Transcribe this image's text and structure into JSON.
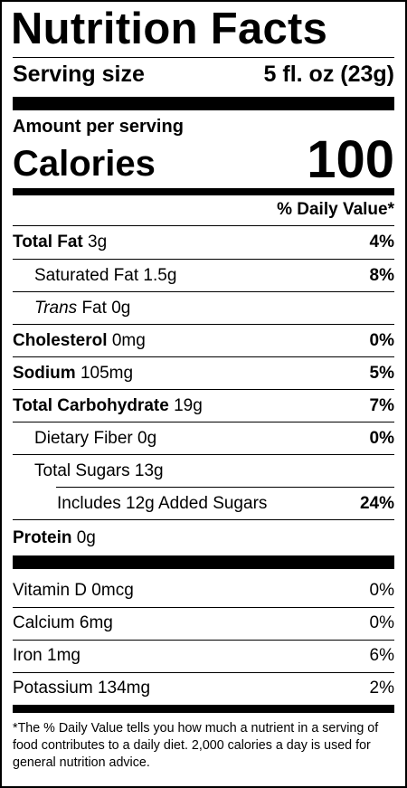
{
  "label": {
    "title": "Nutrition Facts",
    "serving_size": {
      "label": "Serving size",
      "value": "5 fl. oz (23g)"
    },
    "amount_per_serving": "Amount per serving",
    "calories": {
      "label": "Calories",
      "value": "100"
    },
    "daily_value_header": "% Daily Value*",
    "nutrients": [
      {
        "name": "Total Fat",
        "amount": "3g",
        "dv": "4%"
      },
      {
        "name": "Saturated Fat",
        "amount": "1.5g",
        "dv": "8%"
      },
      {
        "name": "Trans",
        "suffix": "Fat",
        "amount": "0g",
        "dv": ""
      },
      {
        "name": "Cholesterol",
        "amount": "0mg",
        "dv": "0%"
      },
      {
        "name": "Sodium",
        "amount": "105mg",
        "dv": "5%"
      },
      {
        "name": "Total Carbohydrate",
        "amount": "19g",
        "dv": "7%"
      },
      {
        "name": "Dietary Fiber",
        "amount": "0g",
        "dv": "0%"
      },
      {
        "name": "Total Sugars",
        "amount": "13g",
        "dv": ""
      },
      {
        "name": "Includes 12g Added Sugars",
        "amount": "",
        "dv": "24%"
      },
      {
        "name": "Protein",
        "amount": "0g",
        "dv": ""
      }
    ],
    "vitamins": [
      {
        "name": "Vitamin D",
        "amount": "0mcg",
        "dv": "0%"
      },
      {
        "name": "Calcium",
        "amount": "6mg",
        "dv": "0%"
      },
      {
        "name": "Iron",
        "amount": "1mg",
        "dv": "6%"
      },
      {
        "name": "Potassium",
        "amount": "134mg",
        "dv": "2%"
      }
    ],
    "footnote": "*The % Daily Value tells you how much a nutrient in a serving of food contributes to a daily diet. 2,000 calories a day is used for general nutrition advice."
  }
}
